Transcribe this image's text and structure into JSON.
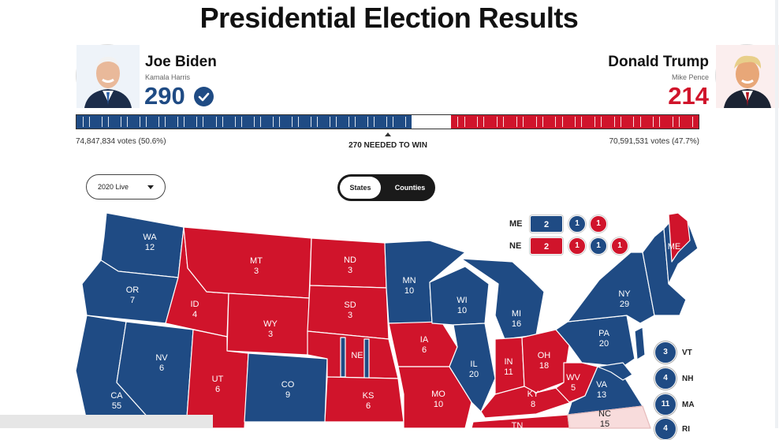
{
  "page": {
    "title": "Presidential Election Results"
  },
  "candidates": {
    "biden": {
      "name": "Joe Biden",
      "running_mate": "Kamala Harris",
      "electoral_votes": "290",
      "popular_votes": "74,847,834 votes (50.6%)",
      "color": "#1f4b84",
      "winner_icon": "check-circle-icon"
    },
    "trump": {
      "name": "Donald Trump",
      "running_mate": "Mike Pence",
      "electoral_votes": "214",
      "popular_votes": "70,591,531 votes (47.7%)",
      "color": "#d0142b"
    }
  },
  "ev_bar": {
    "needed_label": "270 NEEDED TO WIN",
    "total": 538,
    "dem": 290,
    "rep": 214
  },
  "controls": {
    "year_select": "2020 Live",
    "toggle": {
      "states": "States",
      "counties": "Counties",
      "active": "States"
    }
  },
  "split_states": {
    "me": {
      "code": "ME",
      "statewide": "2",
      "statewide_party": "dem",
      "districts": [
        {
          "value": "1",
          "party": "dem"
        },
        {
          "value": "1",
          "party": "rep"
        }
      ]
    },
    "ne": {
      "code": "NE",
      "statewide": "2",
      "statewide_party": "rep",
      "districts": [
        {
          "value": "1",
          "party": "rep"
        },
        {
          "value": "1",
          "party": "dem"
        },
        {
          "value": "1",
          "party": "rep"
        }
      ]
    }
  },
  "small_states": [
    {
      "code": "VT",
      "ev": "3"
    },
    {
      "code": "NH",
      "ev": "4"
    },
    {
      "code": "MA",
      "ev": "11"
    },
    {
      "code": "RI",
      "ev": "4"
    }
  ],
  "states": [
    {
      "code": "WA",
      "ev": "12",
      "party": "dem"
    },
    {
      "code": "OR",
      "ev": "7",
      "party": "dem"
    },
    {
      "code": "CA",
      "ev": "55",
      "party": "dem"
    },
    {
      "code": "NV",
      "ev": "6",
      "party": "dem"
    },
    {
      "code": "ID",
      "ev": "4",
      "party": "rep"
    },
    {
      "code": "MT",
      "ev": "3",
      "party": "rep"
    },
    {
      "code": "WY",
      "ev": "3",
      "party": "rep"
    },
    {
      "code": "UT",
      "ev": "6",
      "party": "rep"
    },
    {
      "code": "CO",
      "ev": "9",
      "party": "dem"
    },
    {
      "code": "ND",
      "ev": "3",
      "party": "rep"
    },
    {
      "code": "SD",
      "ev": "3",
      "party": "rep"
    },
    {
      "code": "NE",
      "ev": "",
      "party": "rep"
    },
    {
      "code": "KS",
      "ev": "6",
      "party": "rep"
    },
    {
      "code": "MN",
      "ev": "10",
      "party": "dem"
    },
    {
      "code": "IA",
      "ev": "6",
      "party": "rep"
    },
    {
      "code": "MO",
      "ev": "10",
      "party": "rep"
    },
    {
      "code": "WI",
      "ev": "10",
      "party": "dem"
    },
    {
      "code": "IL",
      "ev": "20",
      "party": "dem"
    },
    {
      "code": "MI",
      "ev": "16",
      "party": "dem"
    },
    {
      "code": "IN",
      "ev": "11",
      "party": "rep"
    },
    {
      "code": "OH",
      "ev": "18",
      "party": "rep"
    },
    {
      "code": "KY",
      "ev": "8",
      "party": "rep"
    },
    {
      "code": "WV",
      "ev": "5",
      "party": "rep"
    },
    {
      "code": "VA",
      "ev": "13",
      "party": "dem"
    },
    {
      "code": "PA",
      "ev": "20",
      "party": "dem"
    },
    {
      "code": "NY",
      "ev": "29",
      "party": "dem"
    },
    {
      "code": "ME",
      "ev": "",
      "party": "rep"
    },
    {
      "code": "NC",
      "ev": "15",
      "party": "undecided"
    },
    {
      "code": "TN",
      "ev": "",
      "party": "rep"
    }
  ],
  "colors": {
    "dem": "#1f4b84",
    "rep": "#d0142b",
    "undecided": "#f8dcdc"
  }
}
